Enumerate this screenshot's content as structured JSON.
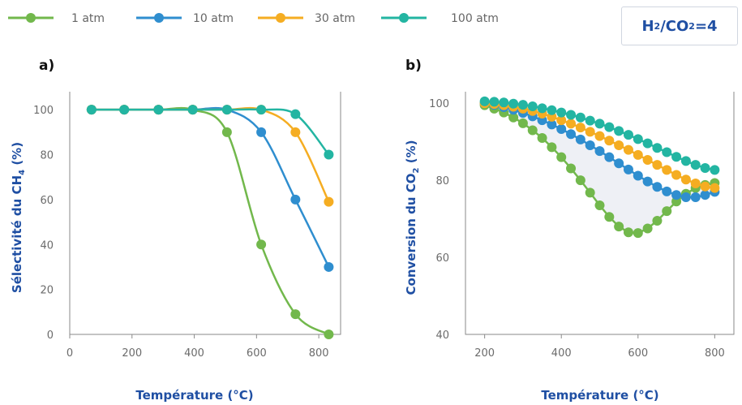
{
  "legend": [
    {
      "label": "1 atm",
      "color": "#72b84c"
    },
    {
      "label": "10 atm",
      "color": "#2f8ecf"
    },
    {
      "label": "30 atm",
      "color": "#f5ad22"
    },
    {
      "label": "100 atm",
      "color": "#23b5a2"
    }
  ],
  "ratio_label": {
    "h": "H",
    "sub1": "2",
    "mid": "/CO",
    "sub2": "2",
    "tail": "=4"
  },
  "chart_data": [
    {
      "type": "line",
      "panel_label": "a)",
      "ylabel": {
        "pre": "Sélectivité  du CH",
        "sub": "4",
        "post": " (%)"
      },
      "xlabel": "Température (°C)",
      "xlim": [
        0,
        870
      ],
      "ylim": [
        0,
        108
      ],
      "xticks": [
        0,
        200,
        400,
        600,
        800
      ],
      "yticks": [
        0,
        20,
        40,
        60,
        80,
        100
      ],
      "series": [
        {
          "name": "1 atm",
          "color": "#72b84c",
          "x": [
            70,
            175,
            285,
            395,
            505,
            615,
            725,
            832
          ],
          "y": [
            100,
            100,
            100,
            100,
            90,
            40,
            9,
            0
          ]
        },
        {
          "name": "10 atm",
          "color": "#2f8ecf",
          "x": [
            70,
            175,
            285,
            395,
            505,
            615,
            725,
            832
          ],
          "y": [
            100,
            100,
            100,
            100,
            100,
            90,
            60,
            30
          ]
        },
        {
          "name": "30 atm",
          "color": "#f5ad22",
          "x": [
            70,
            175,
            285,
            395,
            505,
            615,
            725,
            832
          ],
          "y": [
            100,
            100,
            100,
            100,
            100,
            100,
            90,
            59
          ]
        },
        {
          "name": "100 atm",
          "color": "#23b5a2",
          "x": [
            70,
            175,
            285,
            395,
            505,
            615,
            725,
            832
          ],
          "y": [
            100,
            100,
            100,
            100,
            100,
            100,
            98,
            80
          ]
        }
      ]
    },
    {
      "type": "line",
      "panel_label": "b)",
      "ylabel": {
        "pre": "Conversion du CO",
        "sub": "2",
        "post": " (%)"
      },
      "xlabel": "Température (°C)",
      "xlim": [
        150,
        850
      ],
      "ylim": [
        40,
        103
      ],
      "xticks": [
        200,
        400,
        600,
        800
      ],
      "yticks": [
        40,
        60,
        80,
        100
      ],
      "series": [
        {
          "name": "1 atm",
          "color": "#72b84c",
          "x": [
            200,
            225,
            250,
            275,
            300,
            325,
            350,
            375,
            400,
            425,
            450,
            475,
            500,
            525,
            550,
            575,
            600,
            625,
            650,
            675,
            700,
            725,
            750,
            775,
            800
          ],
          "y": [
            99.5,
            98.6,
            97.6,
            96.3,
            94.8,
            93.0,
            91.0,
            88.6,
            86.0,
            83.1,
            80.0,
            76.8,
            73.5,
            70.5,
            68.0,
            66.5,
            66.3,
            67.5,
            69.5,
            72.0,
            74.5,
            76.5,
            78.0,
            78.8,
            79.3
          ]
        },
        {
          "name": "10 atm",
          "color": "#2f8ecf",
          "x": [
            200,
            225,
            250,
            275,
            300,
            325,
            350,
            375,
            400,
            425,
            450,
            475,
            500,
            525,
            550,
            575,
            600,
            625,
            650,
            675,
            700,
            725,
            750,
            775,
            800
          ],
          "y": [
            100,
            99.6,
            99.0,
            98.3,
            97.5,
            96.6,
            95.6,
            94.5,
            93.3,
            92.0,
            90.6,
            89.1,
            87.6,
            86.0,
            84.4,
            82.8,
            81.2,
            79.7,
            78.3,
            77.1,
            76.2,
            75.6,
            75.6,
            76.2,
            77.0
          ]
        },
        {
          "name": "30 atm",
          "color": "#f5ad22",
          "x": [
            200,
            225,
            250,
            275,
            300,
            325,
            350,
            375,
            400,
            425,
            450,
            475,
            500,
            525,
            550,
            575,
            600,
            625,
            650,
            675,
            700,
            725,
            750,
            775,
            800
          ],
          "y": [
            100,
            99.8,
            99.5,
            99.1,
            98.6,
            98.0,
            97.3,
            96.5,
            95.6,
            94.7,
            93.7,
            92.6,
            91.5,
            90.3,
            89.1,
            87.9,
            86.6,
            85.3,
            84.0,
            82.7,
            81.4,
            80.2,
            79.2,
            78.4,
            78.0
          ]
        },
        {
          "name": "100 atm",
          "color": "#23b5a2",
          "x": [
            200,
            225,
            250,
            275,
            300,
            325,
            350,
            375,
            400,
            425,
            450,
            475,
            500,
            525,
            550,
            575,
            600,
            625,
            650,
            675,
            700,
            725,
            750,
            775,
            800
          ],
          "y": [
            100.5,
            100.4,
            100.2,
            99.9,
            99.6,
            99.2,
            98.7,
            98.2,
            97.6,
            97.0,
            96.3,
            95.5,
            94.7,
            93.8,
            92.8,
            91.8,
            90.7,
            89.6,
            88.4,
            87.3,
            86.1,
            85.0,
            84.0,
            83.2,
            82.7
          ]
        }
      ]
    }
  ]
}
